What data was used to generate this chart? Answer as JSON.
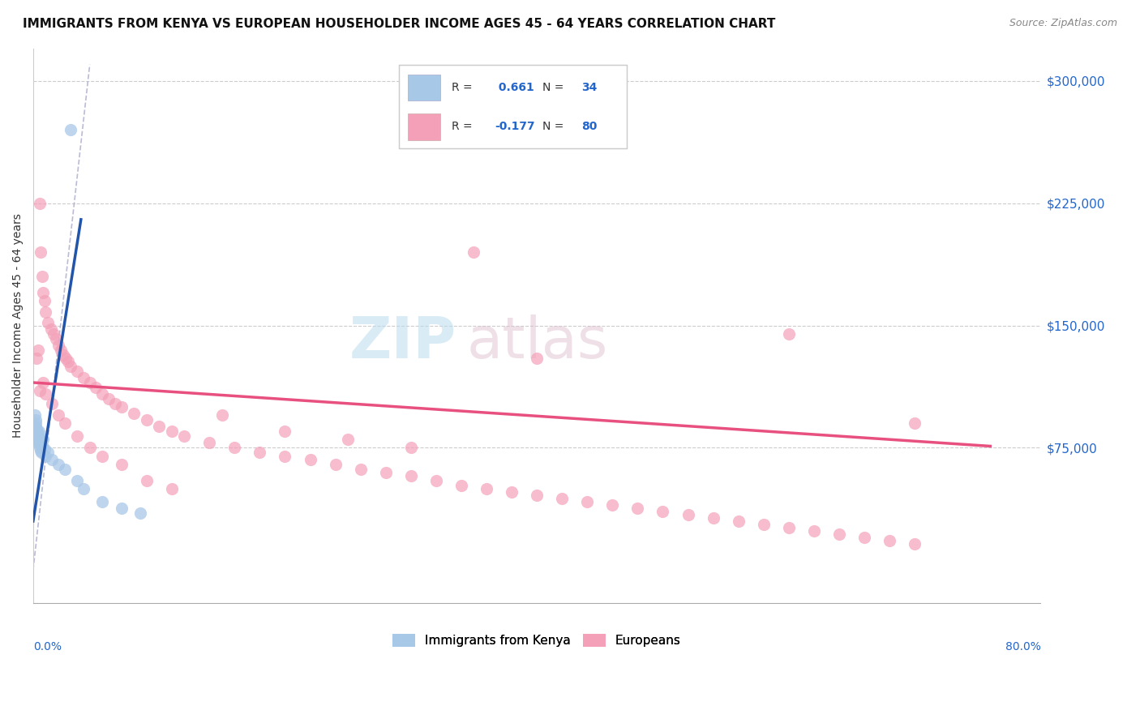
{
  "title": "IMMIGRANTS FROM KENYA VS EUROPEAN HOUSEHOLDER INCOME AGES 45 - 64 YEARS CORRELATION CHART",
  "source": "Source: ZipAtlas.com",
  "ylabel": "Householder Income Ages 45 - 64 years",
  "xmin": 0.0,
  "xmax": 80.0,
  "ymin": -20000,
  "ymax": 320000,
  "watermark_zip": "ZIP",
  "watermark_atlas": "atlas",
  "legend1_r": " 0.661",
  "legend1_n": "34",
  "legend2_r": "-0.177",
  "legend2_n": "80",
  "kenya_color": "#A8C8E8",
  "european_color": "#F4A0B8",
  "kenya_line_color": "#2255AA",
  "european_line_color": "#E85080",
  "ref_line_color": "#AAAACC",
  "background_color": "#ffffff",
  "ytick_vals": [
    75000,
    150000,
    225000,
    300000
  ],
  "ytick_labels": [
    "$75,000",
    "$150,000",
    "$225,000",
    "$300,000"
  ],
  "kenya_x": [
    0.15,
    0.18,
    0.2,
    0.22,
    0.25,
    0.28,
    0.3,
    0.32,
    0.35,
    0.38,
    0.4,
    0.42,
    0.45,
    0.48,
    0.5,
    0.52,
    0.55,
    0.58,
    0.6,
    0.65,
    0.7,
    0.8,
    0.9,
    1.0,
    1.2,
    1.5,
    2.0,
    2.5,
    3.0,
    3.5,
    4.0,
    5.5,
    7.0,
    8.5
  ],
  "kenya_y": [
    95000,
    92000,
    88000,
    90000,
    85000,
    82000,
    86000,
    83000,
    80000,
    84000,
    78000,
    82000,
    79000,
    85000,
    75000,
    80000,
    77000,
    73000,
    78000,
    72000,
    76000,
    80000,
    74000,
    70000,
    72000,
    68000,
    65000,
    62000,
    270000,
    55000,
    50000,
    42000,
    38000,
    35000
  ],
  "eur_x": [
    0.3,
    0.4,
    0.5,
    0.6,
    0.7,
    0.8,
    0.9,
    1.0,
    1.2,
    1.4,
    1.6,
    1.8,
    2.0,
    2.2,
    2.4,
    2.6,
    2.8,
    3.0,
    3.5,
    4.0,
    4.5,
    5.0,
    5.5,
    6.0,
    6.5,
    7.0,
    8.0,
    9.0,
    10.0,
    11.0,
    12.0,
    14.0,
    16.0,
    18.0,
    20.0,
    22.0,
    24.0,
    26.0,
    28.0,
    30.0,
    32.0,
    34.0,
    36.0,
    38.0,
    40.0,
    42.0,
    44.0,
    46.0,
    48.0,
    50.0,
    52.0,
    54.0,
    56.0,
    58.0,
    60.0,
    62.0,
    64.0,
    66.0,
    68.0,
    70.0,
    0.5,
    0.8,
    1.0,
    1.5,
    2.0,
    2.5,
    3.5,
    4.5,
    5.5,
    7.0,
    9.0,
    11.0,
    15.0,
    20.0,
    25.0,
    30.0,
    35.0,
    40.0,
    60.0,
    70.0
  ],
  "eur_y": [
    130000,
    135000,
    225000,
    195000,
    180000,
    170000,
    165000,
    158000,
    152000,
    148000,
    145000,
    142000,
    138000,
    135000,
    132000,
    130000,
    128000,
    125000,
    122000,
    118000,
    115000,
    112000,
    108000,
    105000,
    102000,
    100000,
    96000,
    92000,
    88000,
    85000,
    82000,
    78000,
    75000,
    72000,
    70000,
    68000,
    65000,
    62000,
    60000,
    58000,
    55000,
    52000,
    50000,
    48000,
    46000,
    44000,
    42000,
    40000,
    38000,
    36000,
    34000,
    32000,
    30000,
    28000,
    26000,
    24000,
    22000,
    20000,
    18000,
    16000,
    110000,
    115000,
    108000,
    102000,
    95000,
    90000,
    82000,
    75000,
    70000,
    65000,
    55000,
    50000,
    95000,
    85000,
    80000,
    75000,
    195000,
    130000,
    145000,
    90000
  ]
}
